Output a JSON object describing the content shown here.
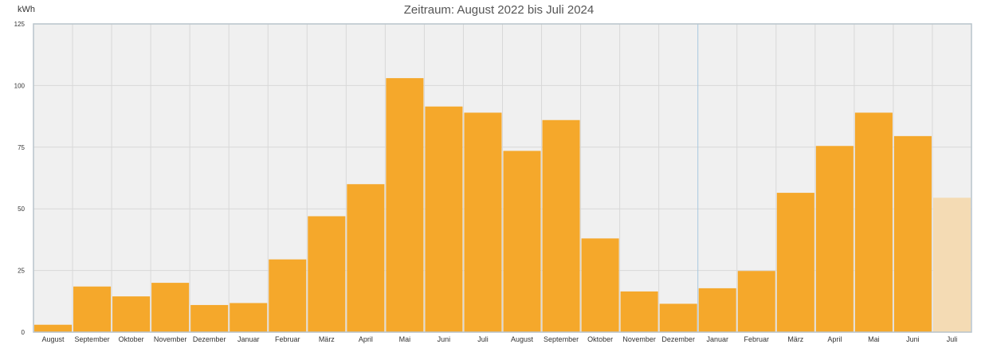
{
  "chart_data": {
    "type": "bar",
    "title": "Zeitraum: August 2022 bis Juli 2024",
    "ylabel": "kWh",
    "xlabel": "",
    "ylim": [
      0,
      125
    ],
    "yticks": [
      0,
      25,
      50,
      75,
      100,
      125
    ],
    "grid": true,
    "legend": "none",
    "categories": [
      "August",
      "September",
      "Oktober",
      "November",
      "Dezember",
      "Januar",
      "Februar",
      "März",
      "April",
      "Mai",
      "Juni",
      "Juli",
      "August",
      "September",
      "Oktober",
      "November",
      "Dezember",
      "Januar",
      "Februar",
      "März",
      "April",
      "Mai",
      "Juni",
      "Juli"
    ],
    "values": [
      3,
      18.5,
      14.5,
      20,
      11,
      11.8,
      29.5,
      47,
      60,
      103,
      91.5,
      89,
      73.5,
      86,
      38,
      16.5,
      11.5,
      17.8,
      24.8,
      56.5,
      75.5,
      89,
      79.5,
      54.5
    ],
    "partial_last": true,
    "colors": {
      "bar": "#f5a82b",
      "bar_partial": "#f4dbb4",
      "plot_bg": "#f0f0f0",
      "grid": "#d8d8d8",
      "frame": "#b8c4cc",
      "year_divider": "#a8c8e0"
    }
  }
}
